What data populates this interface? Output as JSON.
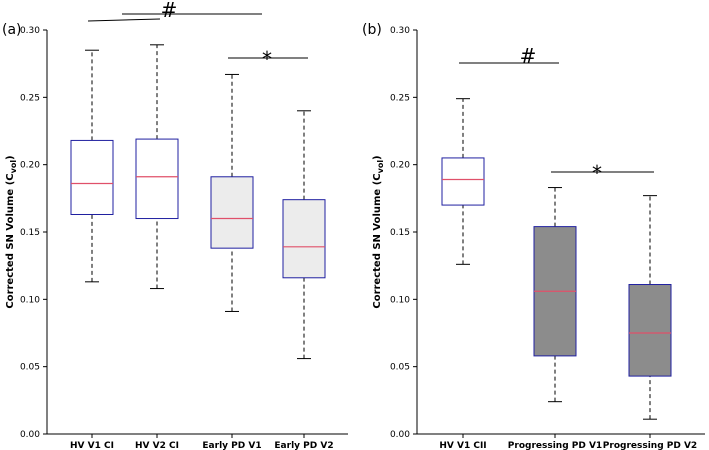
{
  "chart_data": [
    {
      "type": "box",
      "panel_label": "(a)",
      "ylabel": "Corrected SN Volume (C",
      "ylabel_sub": "vol",
      "ylabel_end": ")",
      "ylim": [
        0,
        0.3
      ],
      "yticks": [
        "0.00",
        "0.05",
        "0.10",
        "0.15",
        "0.20",
        "0.25",
        "0.30"
      ],
      "categories": [
        "HV V1 CI",
        "HV V2 CI",
        "Early PD V1",
        "Early PD V2"
      ],
      "boxes": [
        {
          "min": 0.113,
          "q1": 0.163,
          "median": 0.186,
          "q3": 0.218,
          "max": 0.285,
          "fill": "#ffffff"
        },
        {
          "min": 0.108,
          "q1": 0.16,
          "median": 0.191,
          "q3": 0.219,
          "max": 0.289,
          "fill": "#ffffff"
        },
        {
          "min": 0.091,
          "q1": 0.138,
          "median": 0.16,
          "q3": 0.191,
          "max": 0.267,
          "fill": "#ececec"
        },
        {
          "min": 0.056,
          "q1": 0.116,
          "median": 0.139,
          "q3": 0.174,
          "max": 0.24,
          "fill": "#ececec"
        }
      ],
      "significance": [
        {
          "symbol": "#",
          "from": 0,
          "to": 2
        },
        {
          "symbol": "*",
          "from": 2,
          "to": 3
        }
      ]
    },
    {
      "type": "box",
      "panel_label": "(b)",
      "ylabel": "Corrected SN Volume (C",
      "ylabel_sub": "vol",
      "ylabel_end": ")",
      "ylim": [
        0,
        0.3
      ],
      "yticks": [
        "0.00",
        "0.05",
        "0.10",
        "0.15",
        "0.20",
        "0.25",
        "0.30"
      ],
      "categories": [
        "HV V1 CII",
        "Progressing PD V1",
        "Progressing PD V2"
      ],
      "boxes": [
        {
          "min": 0.126,
          "q1": 0.17,
          "median": 0.189,
          "q3": 0.205,
          "max": 0.249,
          "fill": "#ffffff"
        },
        {
          "min": 0.024,
          "q1": 0.058,
          "median": 0.106,
          "q3": 0.154,
          "max": 0.183,
          "fill": "#8c8c8c"
        },
        {
          "min": 0.011,
          "q1": 0.043,
          "median": 0.075,
          "q3": 0.111,
          "max": 0.177,
          "fill": "#8c8c8c"
        }
      ],
      "significance": [
        {
          "symbol": "#",
          "from": 0,
          "to": 1
        },
        {
          "symbol": "*",
          "from": 1,
          "to": 2
        }
      ]
    }
  ],
  "colors": {
    "box_edge": "#1f1fa0",
    "median": "#e0506a",
    "axis": "#000000"
  }
}
